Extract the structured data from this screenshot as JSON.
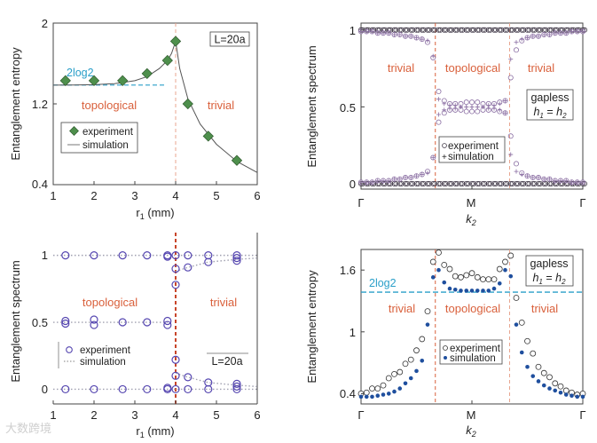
{
  "watermark": "大数跨境",
  "colors": {
    "region": "#d9603b",
    "twolog2": "#2a9fc9",
    "diamond": "#4e8f4c",
    "circle_c": "#5546b0",
    "circle_b": "#3b3342",
    "circle_b2": "#8b6fa3",
    "sim_fill": "#1f4f9e"
  },
  "chart_data": [
    {
      "id": "a",
      "type": "scatter",
      "ylabel": "Entanglement entropy",
      "xlabel": {
        "var": "r",
        "sub": "1",
        "unit": " (mm)"
      },
      "xlim": [
        1,
        6
      ],
      "ylim": [
        0.4,
        2
      ],
      "xticks": [
        "1",
        "2",
        "3",
        "4",
        "5",
        "6"
      ],
      "yticks": [
        "0.4",
        "1.2",
        "2"
      ],
      "annotations": {
        "twolog2": "2log2",
        "twolog2_value": 1.386,
        "left_region": "topological",
        "right_region": "trivial",
        "box": "L=20a",
        "transition_x": 4
      },
      "legend": {
        "experiment": "experiment",
        "simulation": "simulation"
      },
      "experiment": {
        "x": [
          1.3,
          2.0,
          2.7,
          3.3,
          3.8,
          4.0,
          4.3,
          4.8,
          5.5
        ],
        "y": [
          1.43,
          1.43,
          1.43,
          1.5,
          1.63,
          1.82,
          1.2,
          0.88,
          0.64
        ]
      },
      "simulation": {
        "x": [
          1,
          1.5,
          2,
          2.5,
          3,
          3.3,
          3.6,
          3.8,
          3.9,
          4.0,
          4.1,
          4.3,
          4.6,
          5,
          5.5,
          6
        ],
        "y": [
          1.386,
          1.387,
          1.39,
          1.4,
          1.43,
          1.47,
          1.55,
          1.63,
          1.7,
          1.82,
          1.55,
          1.25,
          1.0,
          0.8,
          0.63,
          0.52
        ]
      }
    },
    {
      "id": "b",
      "type": "scatter",
      "ylabel": "Entanglement spectrum",
      "xlabel": {
        "var": "k",
        "sub": "2"
      },
      "xlim": [
        0,
        1
      ],
      "ylim": [
        -0.035,
        1.045
      ],
      "xticks": [
        "Γ",
        "M",
        "Γ"
      ],
      "yticks": [
        "0",
        "0.5",
        "1"
      ],
      "annotations": {
        "left_region": "trivial",
        "mid_region": "topological",
        "right_region": "trivial",
        "box_line1": "gapless",
        "box_line2": {
          "a": "h",
          "a_sub": "1",
          "eq": " = ",
          "b": "h",
          "b_sub": "2"
        },
        "transitions": [
          0.335,
          0.67
        ]
      },
      "legend": {
        "experiment": "experiment",
        "simulation": "simulation"
      },
      "flat_bands": [
        0,
        1
      ],
      "experiment_upper": [
        0.99,
        0.99,
        0.99,
        0.98,
        0.98,
        0.98,
        0.97,
        0.97,
        0.96,
        0.96,
        0.95,
        0.94,
        0.92,
        0.82,
        0.6,
        0.54,
        0.52,
        0.52,
        0.52,
        0.53,
        0.53,
        0.53,
        0.52,
        0.52,
        0.52,
        0.53,
        0.54,
        0.69,
        0.87,
        0.93,
        0.95,
        0.96,
        0.96,
        0.97,
        0.97,
        0.98,
        0.98,
        0.98,
        0.99,
        0.99,
        0.99
      ],
      "experiment_lower": [
        0.01,
        0.01,
        0.01,
        0.02,
        0.02,
        0.02,
        0.03,
        0.03,
        0.04,
        0.04,
        0.05,
        0.06,
        0.08,
        0.17,
        0.4,
        0.46,
        0.48,
        0.48,
        0.48,
        0.47,
        0.47,
        0.47,
        0.48,
        0.48,
        0.48,
        0.47,
        0.46,
        0.31,
        0.13,
        0.07,
        0.05,
        0.04,
        0.04,
        0.03,
        0.03,
        0.02,
        0.02,
        0.02,
        0.01,
        0.01,
        0.01
      ],
      "simulation_upper": [
        0.99,
        0.99,
        0.99,
        0.98,
        0.98,
        0.98,
        0.97,
        0.97,
        0.96,
        0.96,
        0.95,
        0.94,
        0.93,
        0.83,
        0.55,
        0.52,
        0.51,
        0.51,
        0.5,
        0.5,
        0.5,
        0.5,
        0.5,
        0.51,
        0.51,
        0.52,
        0.54,
        0.81,
        0.92,
        0.94,
        0.95,
        0.96,
        0.96,
        0.97,
        0.97,
        0.98,
        0.98,
        0.98,
        0.99,
        0.99,
        0.99
      ],
      "simulation_lower": [
        0.01,
        0.01,
        0.01,
        0.02,
        0.02,
        0.02,
        0.03,
        0.03,
        0.04,
        0.04,
        0.05,
        0.06,
        0.07,
        0.17,
        0.45,
        0.48,
        0.49,
        0.49,
        0.5,
        0.5,
        0.5,
        0.5,
        0.5,
        0.49,
        0.49,
        0.48,
        0.46,
        0.19,
        0.08,
        0.06,
        0.05,
        0.04,
        0.04,
        0.03,
        0.03,
        0.02,
        0.02,
        0.02,
        0.01,
        0.01,
        0.01
      ]
    },
    {
      "id": "c",
      "type": "scatter",
      "ylabel": "Entanglement spectrum",
      "xlabel": {
        "var": "r",
        "sub": "1",
        "unit": " (mm)"
      },
      "xlim": [
        1,
        6
      ],
      "ylim": [
        -0.11,
        1.17
      ],
      "xticks": [
        "1",
        "2",
        "3",
        "4",
        "5",
        "6"
      ],
      "yticks": [
        "0",
        "0.5",
        "1"
      ],
      "annotations": {
        "left_region": "topological",
        "right_region": "trivial",
        "box": "L=20a",
        "transition_x": 4
      },
      "legend": {
        "experiment": "experiment",
        "simulation": "simulation"
      },
      "experiment": [
        {
          "x": 1.3,
          "y": [
            0,
            0.49,
            0.51,
            1
          ]
        },
        {
          "x": 2.0,
          "y": [
            0,
            0.48,
            0.52,
            1
          ]
        },
        {
          "x": 2.7,
          "y": [
            0,
            0.5,
            1
          ]
        },
        {
          "x": 3.3,
          "y": [
            0,
            0.5,
            1
          ]
        },
        {
          "x": 3.8,
          "y": [
            0,
            0.01,
            0.48,
            0.51,
            0.99,
            1
          ]
        },
        {
          "x": 4.0,
          "y": [
            0,
            0.1,
            0.22,
            0.78,
            0.9,
            1
          ]
        },
        {
          "x": 4.3,
          "y": [
            0,
            0.09,
            0.91,
            1
          ]
        },
        {
          "x": 4.8,
          "y": [
            0,
            0.05,
            0.95,
            1
          ]
        },
        {
          "x": 5.5,
          "y": [
            0,
            0.02,
            0.04,
            0.96,
            0.98,
            1
          ]
        }
      ],
      "simulation": [
        {
          "x": [
            1,
            6
          ],
          "y": [
            1,
            1
          ]
        },
        {
          "x": [
            1,
            3.8
          ],
          "y": [
            0.5,
            0.5
          ]
        },
        {
          "x": [
            1,
            6
          ],
          "y": [
            0,
            0
          ]
        },
        {
          "x": [
            4.0,
            4.3,
            4.8,
            5.5,
            6
          ],
          "y": [
            0.88,
            0.91,
            0.95,
            0.97,
            0.98
          ]
        },
        {
          "x": [
            4.0,
            4.3,
            4.8,
            5.5,
            6
          ],
          "y": [
            0.12,
            0.09,
            0.05,
            0.03,
            0.02
          ]
        }
      ]
    },
    {
      "id": "d",
      "type": "scatter",
      "ylabel": "Entanglement entropy",
      "xlabel": {
        "var": "k",
        "sub": "2"
      },
      "xlim": [
        0,
        1
      ],
      "ylim": [
        0.3,
        1.8
      ],
      "xticks": [
        "Γ",
        "M",
        "Γ"
      ],
      "yticks": [
        "0.4",
        "1",
        "1.6"
      ],
      "annotations": {
        "twolog2": "2log2",
        "twolog2_value": 1.386,
        "left_region": "trivial",
        "mid_region": "topological",
        "right_region": "trivial",
        "box_line1": "gapless",
        "box_line2": {
          "a": "h",
          "a_sub": "1",
          "eq": " = ",
          "b": "h",
          "b_sub": "2"
        },
        "transitions": [
          0.335,
          0.67
        ]
      },
      "legend": {
        "experiment": "experiment",
        "simulation": "simulation"
      },
      "experiment": [
        0.4,
        0.41,
        0.45,
        0.45,
        0.48,
        0.55,
        0.59,
        0.61,
        0.69,
        0.73,
        0.82,
        0.93,
        1.2,
        1.68,
        1.77,
        1.65,
        1.61,
        1.54,
        1.53,
        1.55,
        1.57,
        1.53,
        1.51,
        1.51,
        1.51,
        1.61,
        1.68,
        1.74,
        1.33,
        1.09,
        0.91,
        0.79,
        0.66,
        0.6,
        0.56,
        0.5,
        0.47,
        0.43,
        0.41,
        0.39,
        0.4
      ],
      "simulation": [
        0.37,
        0.37,
        0.37,
        0.38,
        0.39,
        0.4,
        0.42,
        0.45,
        0.5,
        0.55,
        0.62,
        0.72,
        1.07,
        1.53,
        1.6,
        1.48,
        1.42,
        1.41,
        1.4,
        1.4,
        1.4,
        1.4,
        1.4,
        1.4,
        1.42,
        1.47,
        1.6,
        1.54,
        1.07,
        0.8,
        0.66,
        0.57,
        0.52,
        0.48,
        0.45,
        0.43,
        0.41,
        0.39,
        0.38,
        0.37,
        0.37
      ]
    }
  ]
}
